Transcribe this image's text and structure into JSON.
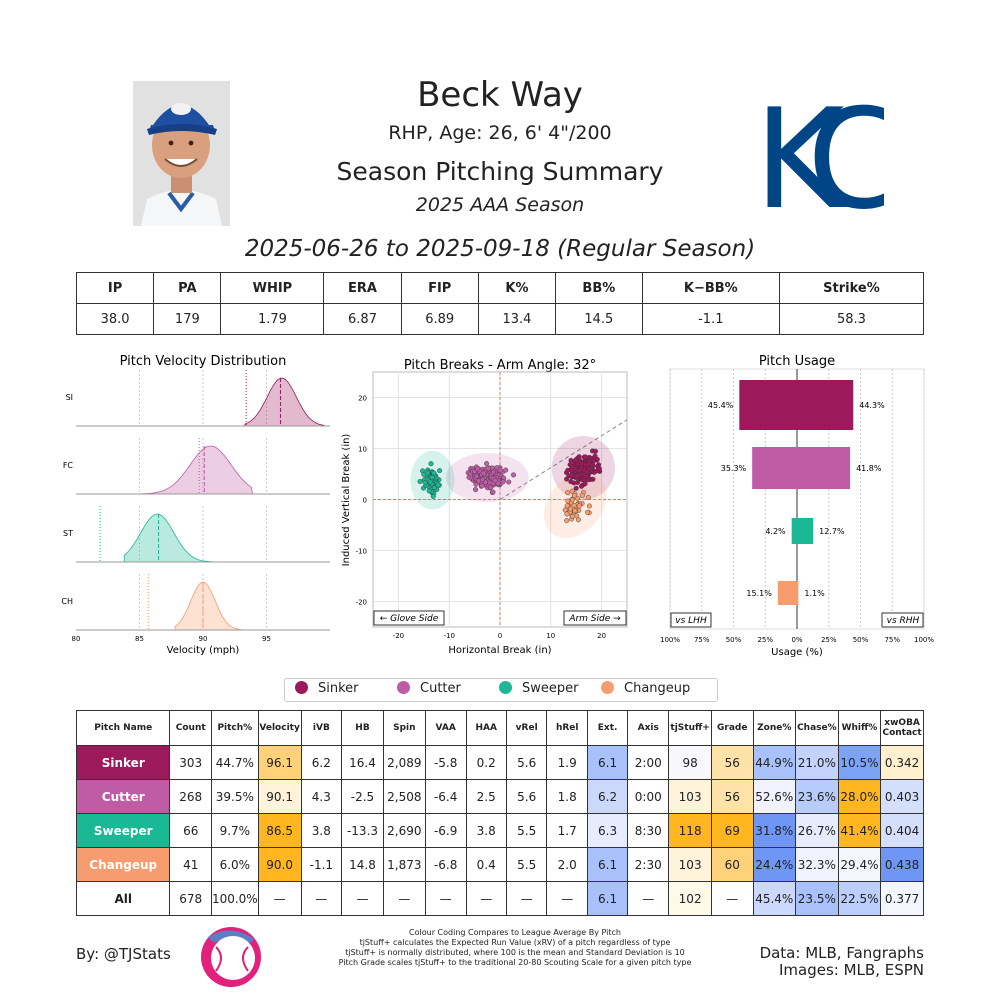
{
  "header": {
    "name": "Beck Way",
    "info": "RHP, Age: 26, 6' 4\"/200",
    "title": "Season Pitching Summary",
    "season": "2025 AAA Season",
    "date_range": "2025-06-26 to 2025-09-18 (Regular Season)",
    "team_logo_text": "KC",
    "team_color": "#004687"
  },
  "summary": {
    "headers": [
      "IP",
      "PA",
      "WHIP",
      "ERA",
      "FIP",
      "K%",
      "BB%",
      "K−BB%",
      "Strike%"
    ],
    "values": [
      "38.0",
      "179",
      "1.79",
      "6.87",
      "6.89",
      "13.4",
      "14.5",
      "-1.1",
      "58.3"
    ]
  },
  "pitch_colors": {
    "Sinker": "#9c1a5c",
    "Cutter": "#c05ca6",
    "Sweeper": "#1ab894",
    "Changeup": "#f79c6e"
  },
  "chart_data": [
    {
      "type": "area",
      "title": "Pitch Velocity Distribution",
      "xlabel": "Velocity (mph)",
      "xlim": [
        80,
        100
      ],
      "xticks": [
        "80",
        "85",
        "90",
        "95"
      ],
      "series": [
        {
          "name": "SI",
          "mean": 96.1,
          "league_mean": 93.4,
          "mode": 96.2,
          "range": [
            93.3,
            99.6
          ]
        },
        {
          "name": "FC",
          "mean": 90.1,
          "league_mean": 89.7,
          "mode": 90.6,
          "range": [
            85.0,
            93.9
          ]
        },
        {
          "name": "ST",
          "mean": 86.5,
          "league_mean": 81.9,
          "mode": 86.4,
          "range": [
            83.8,
            91.0
          ]
        },
        {
          "name": "CH",
          "mean": 90.0,
          "league_mean": 85.7,
          "mode": 90.0,
          "range": [
            87.8,
            93.1
          ]
        }
      ]
    },
    {
      "type": "scatter",
      "title": "Pitch Breaks - Arm Angle: 32°",
      "xlabel": "Horizontal Break (in)",
      "ylabel": "Induced Vertical Break (in)",
      "xlim": [
        -25,
        25
      ],
      "ylim": [
        -25,
        25
      ],
      "xticks": [
        "-20",
        "-10",
        "0",
        "10",
        "20"
      ],
      "yticks": [
        "-20",
        "-10",
        "0",
        "10",
        "20"
      ],
      "left_label": "← Glove Side",
      "right_label": "Arm Side →",
      "arm_angle_deg": 32,
      "series": [
        {
          "name": "Sinker",
          "center": [
            16.4,
            6.2
          ],
          "spread": [
            2.6,
            2.6
          ],
          "count": 303
        },
        {
          "name": "Cutter",
          "center": [
            -2.5,
            4.3
          ],
          "spread": [
            3.4,
            2.0
          ],
          "count": 268
        },
        {
          "name": "Sweeper",
          "center": [
            -13.3,
            3.8
          ],
          "spread": [
            1.8,
            2.4
          ],
          "count": 66
        },
        {
          "name": "Changeup",
          "center": [
            14.8,
            -1.1
          ],
          "spread": [
            2.2,
            3.0
          ],
          "count": 41
        }
      ]
    },
    {
      "type": "bar",
      "title": "Pitch Usage",
      "xlabel": "Usage (%)",
      "xlim": [
        -100,
        100
      ],
      "xticks": [
        "100%",
        "75%",
        "50%",
        "25%",
        "0%",
        "25%",
        "50%",
        "75%",
        "100%"
      ],
      "left_label": "vs LHH",
      "right_label": "vs RHH",
      "categories": [
        "Sinker",
        "Cutter",
        "Sweeper",
        "Changeup"
      ],
      "series": [
        {
          "name": "vs LHH",
          "values": [
            45.4,
            35.3,
            4.2,
            15.1
          ]
        },
        {
          "name": "vs RHH",
          "values": [
            44.3,
            41.8,
            12.7,
            1.1
          ]
        }
      ],
      "left_labels": [
        "45.4%",
        "35.3%",
        "4.2%",
        "15.1%"
      ],
      "right_labels": [
        "44.3%",
        "41.8%",
        "12.7%",
        "1.1%"
      ]
    }
  ],
  "legend": [
    "Sinker",
    "Cutter",
    "Sweeper",
    "Changeup"
  ],
  "pitch_table": {
    "headers": [
      "Pitch Name",
      "Count",
      "Pitch%",
      "Velocity",
      "iVB",
      "HB",
      "Spin",
      "VAA",
      "HAA",
      "vRel",
      "hRel",
      "Ext.",
      "Axis",
      "tjStuff+",
      "Grade",
      "Zone%",
      "Chase%",
      "Whiff%",
      "xwOBA Contact"
    ],
    "rows": [
      {
        "cells": [
          "Sinker",
          "303",
          "44.7%",
          "96.1",
          "6.2",
          "16.4",
          "2,089",
          "-5.8",
          "0.2",
          "5.6",
          "1.9",
          "6.1",
          "2:00",
          "98",
          "56",
          "44.9%",
          "21.0%",
          "10.5%",
          "0.342"
        ],
        "colors": [
          "#9c1a5c",
          "",
          "",
          "#ffd27a",
          "",
          "",
          "",
          "",
          "",
          "",
          "",
          "#a9c1fb",
          "",
          "#f8f8fb",
          "#ffe2a8",
          "#a9c1fb",
          "#c3d3fb",
          "#7da3f7",
          "#fff1cf"
        ]
      },
      {
        "cells": [
          "Cutter",
          "268",
          "39.5%",
          "90.1",
          "4.3",
          "-2.5",
          "2,508",
          "-6.4",
          "2.5",
          "5.6",
          "1.8",
          "6.2",
          "0:00",
          "103",
          "56",
          "52.6%",
          "23.6%",
          "28.0%",
          "0.403"
        ],
        "colors": [
          "#c05ca6",
          "",
          "",
          "#fff3dc",
          "",
          "",
          "",
          "",
          "",
          "",
          "",
          "#cbd8fb",
          "",
          "#fff3dc",
          "#ffe2a8",
          "#f0f3fd",
          "#b8ccfb",
          "#ffb61f",
          "#d3dffb"
        ]
      },
      {
        "cells": [
          "Sweeper",
          "66",
          "9.7%",
          "86.5",
          "3.8",
          "-13.3",
          "2,690",
          "-6.9",
          "3.8",
          "5.5",
          "1.7",
          "6.3",
          "8:30",
          "118",
          "69",
          "31.8%",
          "26.7%",
          "41.4%",
          "0.404"
        ],
        "colors": [
          "#1ab894",
          "",
          "",
          "#ffb61f",
          "",
          "",
          "",
          "",
          "",
          "",
          "",
          "#e6ecfd",
          "",
          "#ffb61f",
          "#ffb61f",
          "#6f96f5",
          "#e6ecfd",
          "#ffb61f",
          "#d3dffb"
        ]
      },
      {
        "cells": [
          "Changeup",
          "41",
          "6.0%",
          "90.0",
          "-1.1",
          "14.8",
          "1,873",
          "-6.8",
          "0.4",
          "5.5",
          "2.0",
          "6.1",
          "2:30",
          "103",
          "60",
          "24.4%",
          "32.3%",
          "29.4%",
          "0.438"
        ],
        "colors": [
          "#f79c6e",
          "",
          "",
          "#ffb61f",
          "",
          "",
          "",
          "",
          "",
          "",
          "",
          "#a9c1fb",
          "",
          "#fff3dc",
          "#ffd27a",
          "#6f96f5",
          "#f0f3fd",
          "#f4f6fd",
          "#6f96f5"
        ]
      },
      {
        "cells": [
          "All",
          "678",
          "100.0%",
          "—",
          "—",
          "—",
          "—",
          "—",
          "—",
          "—",
          "—",
          "6.1",
          "—",
          "102",
          "—",
          "45.4%",
          "23.5%",
          "22.5%",
          "0.377"
        ],
        "colors": [
          "#ffffff",
          "",
          "",
          "",
          "",
          "",
          "",
          "",
          "",
          "",
          "",
          "#a9c1fb",
          "",
          "#fff9ea",
          "",
          "#cbd8fb",
          "#a9c1fb",
          "#bccefb",
          "#f4f6fd"
        ]
      }
    ]
  },
  "footer": {
    "by": "By: @TJStats",
    "notes": [
      "Colour Coding Compares to League Average By Pitch",
      "tjStuff+ calculates the Expected Run Value (xRV) of a pitch regardless of type",
      "tjStuff+ is normally distributed, where 100 is the mean and Standard Deviation is 10",
      "Pitch Grade scales tjStuff+ to the traditional 20-80 Scouting Scale for a given pitch type"
    ],
    "data": "Data: MLB, Fangraphs",
    "images": "Images: MLB, ESPN"
  }
}
